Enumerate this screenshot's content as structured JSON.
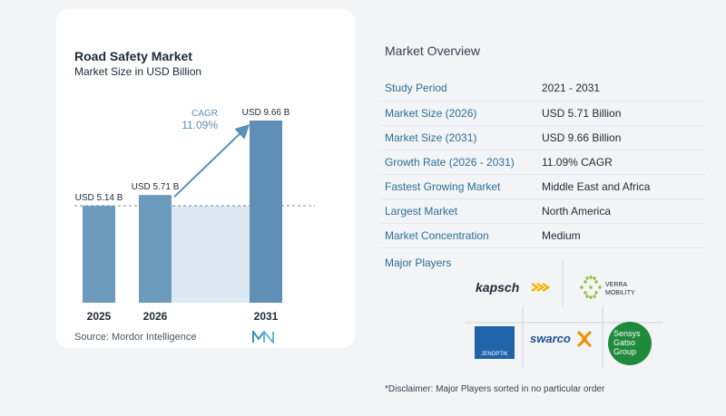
{
  "chart_data": {
    "type": "bar",
    "title": "Road Safety Market",
    "subtitle": "Market Size in USD Billion",
    "categories": [
      "2025",
      "2026",
      "2031"
    ],
    "values": [
      5.14,
      5.71,
      9.66
    ],
    "value_labels": [
      "USD 5.14 B",
      "USD 5.71 B",
      "USD 9.66 B"
    ],
    "ylim": [
      0,
      10
    ],
    "cagr_label": "CAGR",
    "cagr_value": "11.09%",
    "colors": {
      "bar": "#6d9bbd",
      "bar_highlight": "#5f8fb4",
      "band": "#dce8f2",
      "arrow": "#5a90b9",
      "cagr": "#5a90b9"
    }
  },
  "source": "Source:   Mordor Intelligence",
  "overview": {
    "title": "Market Overview",
    "rows": [
      {
        "key": "Study Period",
        "value": "2021 - 2031"
      },
      {
        "key": "Market Size (2026)",
        "value": "USD 5.71 Billion"
      },
      {
        "key": "Market Size (2031)",
        "value": "USD 9.66 Billion"
      },
      {
        "key": "Growth Rate (2026 - 2031)",
        "value": "11.09% CAGR"
      },
      {
        "key": "Fastest Growing Market",
        "value": "Middle East and Africa"
      },
      {
        "key": "Largest Market",
        "value": "North America"
      },
      {
        "key": "Market Concentration",
        "value": "Medium"
      }
    ]
  },
  "players": {
    "title": "Major Players",
    "kapsch": "kapsch",
    "verra_line1": "VERRA",
    "verra_line2": "MOBILITY",
    "jenoptik": "JENOPTIK",
    "swarco": "swarco",
    "sensys_line1": "Sensys",
    "sensys_line2": "Gatso",
    "sensys_line3": "Group"
  },
  "disclaimer": "*Disclaimer: Major Players sorted in no particular order"
}
